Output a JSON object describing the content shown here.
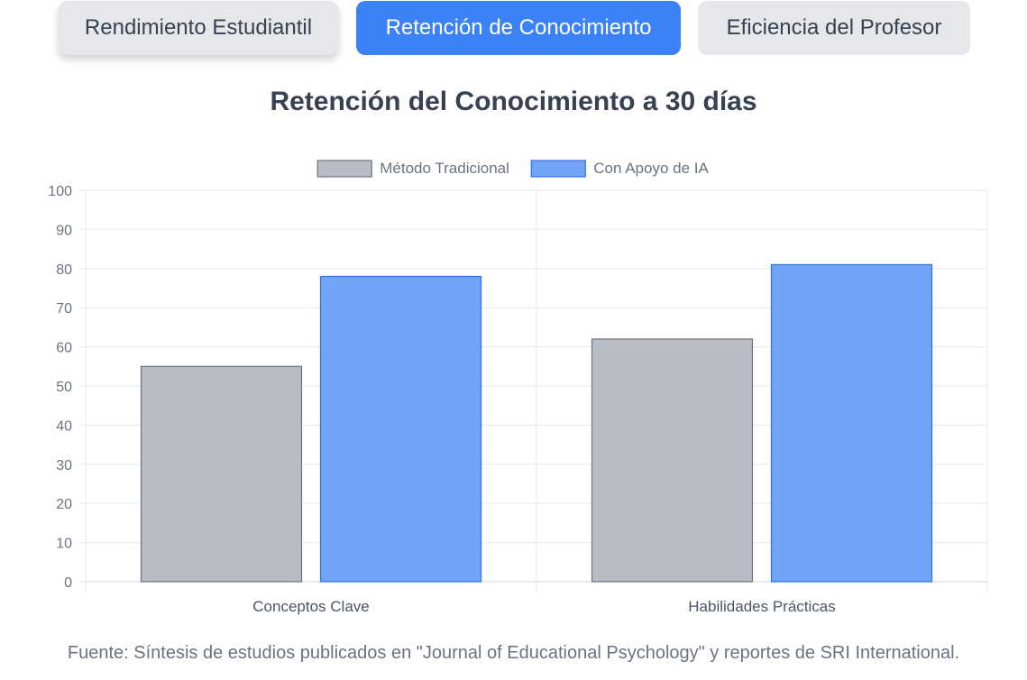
{
  "tabs": [
    {
      "label": "Rendimiento Estudiantil",
      "active": false
    },
    {
      "label": "Retención de Conocimiento",
      "active": true
    },
    {
      "label": "Eficiencia del Profesor",
      "active": false
    }
  ],
  "colors": {
    "tab_active": "#3b82f6",
    "tab_inactive": "#e5e7eb",
    "series_traditional_fill": "#b7bcc5",
    "series_traditional_border": "#6b7280",
    "series_ai_fill": "#71a4f8",
    "series_ai_border": "#2f6fe8"
  },
  "chart_data": {
    "type": "bar",
    "title": "Retención del Conocimiento a 30 días",
    "categories": [
      "Conceptos Clave",
      "Habilidades Prácticas"
    ],
    "series": [
      {
        "name": "Método Tradicional",
        "values": [
          55,
          62
        ]
      },
      {
        "name": "Con Apoyo de IA",
        "values": [
          78,
          81
        ]
      }
    ],
    "ylim": [
      0,
      100
    ],
    "yticks": [
      0,
      10,
      20,
      30,
      40,
      50,
      60,
      70,
      80,
      90,
      100
    ],
    "grid": true,
    "legend": "top-center"
  },
  "source": "Fuente: Síntesis de estudios publicados en \"Journal of Educational Psychology\" y reportes de SRI International."
}
